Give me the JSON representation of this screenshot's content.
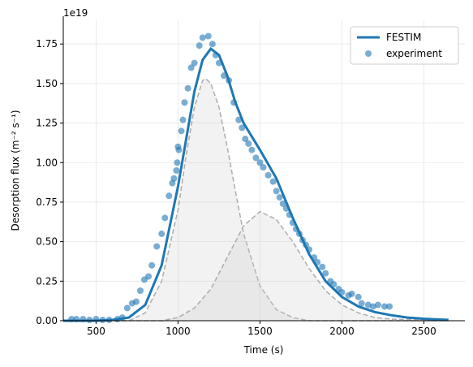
{
  "chart_data": {
    "type": "line",
    "xlabel": "Time (s)",
    "ylabel": "Desorption flux (m⁻² s⁻¹)",
    "y_offset_label": "1e19",
    "xlim": [
      300,
      2750
    ],
    "ylim": [
      0,
      1.9
    ],
    "xticks": [
      500,
      1000,
      1500,
      2000,
      2500
    ],
    "yticks": [
      {
        "value": 0,
        "label": "0.00"
      },
      {
        "value": 0.25,
        "label": "0.25"
      },
      {
        "value": 0.5,
        "label": "0.50"
      },
      {
        "value": 0.75,
        "label": "0.75"
      },
      {
        "value": 1,
        "label": "1.00"
      },
      {
        "value": 1.25,
        "label": "1.25"
      },
      {
        "value": 1.5,
        "label": "1.50"
      },
      {
        "value": 1.75,
        "label": "1.75"
      }
    ],
    "grid": true,
    "legend": "upper right",
    "series": [
      {
        "name": "FESTIM",
        "type": "line",
        "color": "#1f77b4",
        "x": [
          300,
          500,
          600,
          700,
          800,
          900,
          1000,
          1050,
          1100,
          1150,
          1200,
          1250,
          1300,
          1350,
          1400,
          1500,
          1600,
          1700,
          1800,
          1900,
          2000,
          2100,
          2200,
          2300,
          2400,
          2500,
          2650
        ],
        "values": [
          0,
          0,
          0.005,
          0.02,
          0.1,
          0.35,
          0.85,
          1.15,
          1.45,
          1.65,
          1.72,
          1.68,
          1.55,
          1.38,
          1.25,
          1.08,
          0.9,
          0.65,
          0.42,
          0.25,
          0.15,
          0.09,
          0.055,
          0.035,
          0.02,
          0.012,
          0.005
        ]
      },
      {
        "name": "experiment",
        "type": "scatter",
        "color": "#1f77b4",
        "x": [
          350,
          380,
          420,
          460,
          500,
          540,
          580,
          630,
          660,
          690,
          720,
          745,
          770,
          795,
          820,
          840,
          870,
          900,
          920,
          945,
          965,
          975,
          990,
          995,
          1000,
          1005,
          1020,
          1030,
          1040,
          1060,
          1080,
          1100,
          1130,
          1150,
          1185,
          1210,
          1230,
          1250,
          1280,
          1310,
          1340,
          1370,
          1390,
          1410,
          1430,
          1450,
          1475,
          1500,
          1520,
          1550,
          1580,
          1600,
          1620,
          1640,
          1660,
          1680,
          1700,
          1720,
          1740,
          1760,
          1780,
          1800,
          1830,
          1850,
          1880,
          1900,
          1930,
          1950,
          1980,
          2000,
          2040,
          2060,
          2100,
          2120,
          2160,
          2190,
          2220,
          2260,
          2290
        ],
        "values": [
          0.01,
          0.01,
          0.01,
          0.005,
          0.01,
          0.005,
          0.005,
          0.01,
          0.02,
          0.08,
          0.11,
          0.12,
          0.19,
          0.26,
          0.28,
          0.35,
          0.47,
          0.55,
          0.65,
          0.79,
          0.87,
          0.9,
          0.95,
          1.0,
          1.1,
          1.08,
          1.2,
          1.27,
          1.38,
          1.47,
          1.6,
          1.63,
          1.74,
          1.79,
          1.8,
          1.75,
          1.68,
          1.63,
          1.55,
          1.52,
          1.38,
          1.27,
          1.22,
          1.15,
          1.12,
          1.08,
          1.03,
          1.0,
          0.97,
          0.92,
          0.88,
          0.82,
          0.78,
          0.74,
          0.71,
          0.67,
          0.62,
          0.58,
          0.55,
          0.51,
          0.48,
          0.45,
          0.4,
          0.37,
          0.34,
          0.3,
          0.25,
          0.23,
          0.2,
          0.18,
          0.16,
          0.17,
          0.15,
          0.11,
          0.1,
          0.09,
          0.1,
          0.09,
          0.09
        ]
      }
    ],
    "components": [
      {
        "color": "#b0b0b0",
        "x": [
          300,
          700,
          800,
          900,
          1000,
          1050,
          1100,
          1150,
          1170,
          1200,
          1250,
          1300,
          1350,
          1400,
          1500,
          1600,
          1700,
          1800,
          2650
        ],
        "values": [
          0,
          0,
          0.05,
          0.25,
          0.7,
          1.05,
          1.35,
          1.52,
          1.53,
          1.5,
          1.35,
          1.1,
          0.82,
          0.55,
          0.22,
          0.07,
          0.02,
          0,
          0
        ]
      },
      {
        "color": "#b0b0b0",
        "x": [
          300,
          900,
          1000,
          1100,
          1200,
          1300,
          1400,
          1500,
          1600,
          1700,
          1800,
          1900,
          2000,
          2100,
          2200,
          2300,
          2650
        ],
        "values": [
          0,
          0,
          0.02,
          0.08,
          0.2,
          0.4,
          0.6,
          0.69,
          0.64,
          0.5,
          0.33,
          0.19,
          0.1,
          0.05,
          0.02,
          0.01,
          0
        ]
      }
    ]
  }
}
